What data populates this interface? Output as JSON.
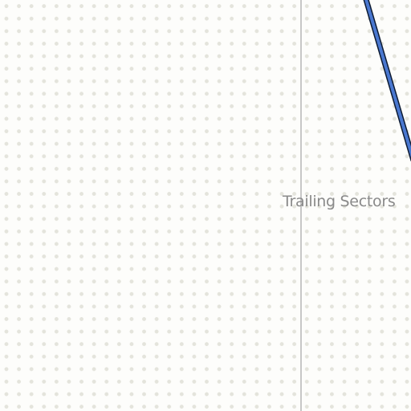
{
  "canvas": {
    "background": "#fdfdfb",
    "dot_color": "#e4e4dc"
  },
  "divider": {
    "color": "#c7c7c7"
  },
  "group": {
    "label": "Trailing Sectors",
    "color": "#8a8a8a"
  },
  "connector": {
    "fill": "#4a78d0",
    "outline": "#0d1b33"
  }
}
